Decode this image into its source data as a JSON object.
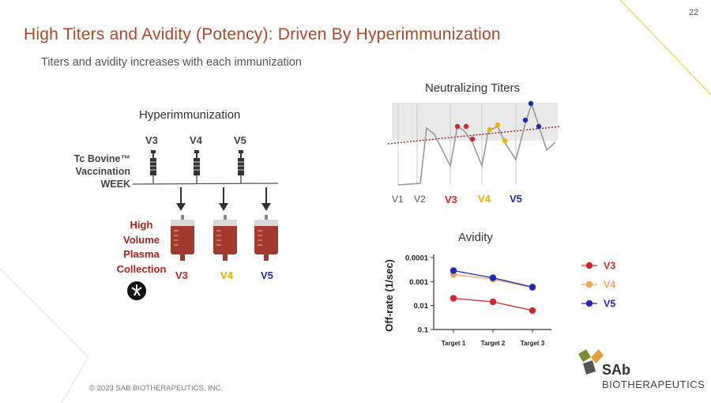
{
  "page": {
    "number": "22",
    "title": "High Titers and Avidity (Potency): Driven By Hyperimmunization",
    "subtitle": "Titers and avidity increases with each immunization",
    "copyright": "© 2023 SAB BIOTHERAPEUTICS, INC."
  },
  "colors": {
    "title": "#b0472a",
    "v3": "#d4262b",
    "v4": "#f0b400",
    "v5": "#1f2bb8",
    "avidity_v4": "#f2a65a",
    "plasma": "#a33a2e",
    "brand_green": "#7a8d2a",
    "brand_orange": "#e0a13a",
    "brand_dark": "#555555"
  },
  "hyper": {
    "title": "Hyperimmunization",
    "vacc_labels": [
      "V3",
      "V4",
      "V5"
    ],
    "left_label_line1": "Tc Bovine™",
    "left_label_line2": "Vaccination",
    "left_label_line3": "WEEK",
    "plasma_line1": "High",
    "plasma_line2": "Volume",
    "plasma_line3": "Plasma",
    "plasma_line4": "Collection",
    "collection_labels": [
      "V3",
      "V4",
      "V5"
    ],
    "icon": "sab-cross-icon"
  },
  "neutralizing": {
    "title": "Neutralizing Titers",
    "x_labels": [
      "V1",
      "V2",
      "V3",
      "V4",
      "V5"
    ]
  },
  "chart_data": {
    "type": "line",
    "title": "Avidity",
    "xlabel": "",
    "ylabel": "Off-rate (1/sec)",
    "categories": [
      "Target 1",
      "Target 2",
      "Target 3"
    ],
    "y_scale": "log-reversed",
    "y_ticks": [
      "0.0001",
      "0.001",
      "0.01",
      "0.1"
    ],
    "ylim": [
      0.1,
      0.0001
    ],
    "legend_position": "right",
    "series": [
      {
        "name": "V3",
        "values": [
          0.005,
          0.007,
          0.016
        ]
      },
      {
        "name": "V4",
        "values": [
          0.0005,
          0.0008,
          0.0018
        ]
      },
      {
        "name": "V5",
        "values": [
          0.00035,
          0.0007,
          0.0017
        ]
      }
    ]
  },
  "brand": {
    "logo_text": "SAb",
    "logo_subtext": "BIOTHERAPEUTICS"
  }
}
